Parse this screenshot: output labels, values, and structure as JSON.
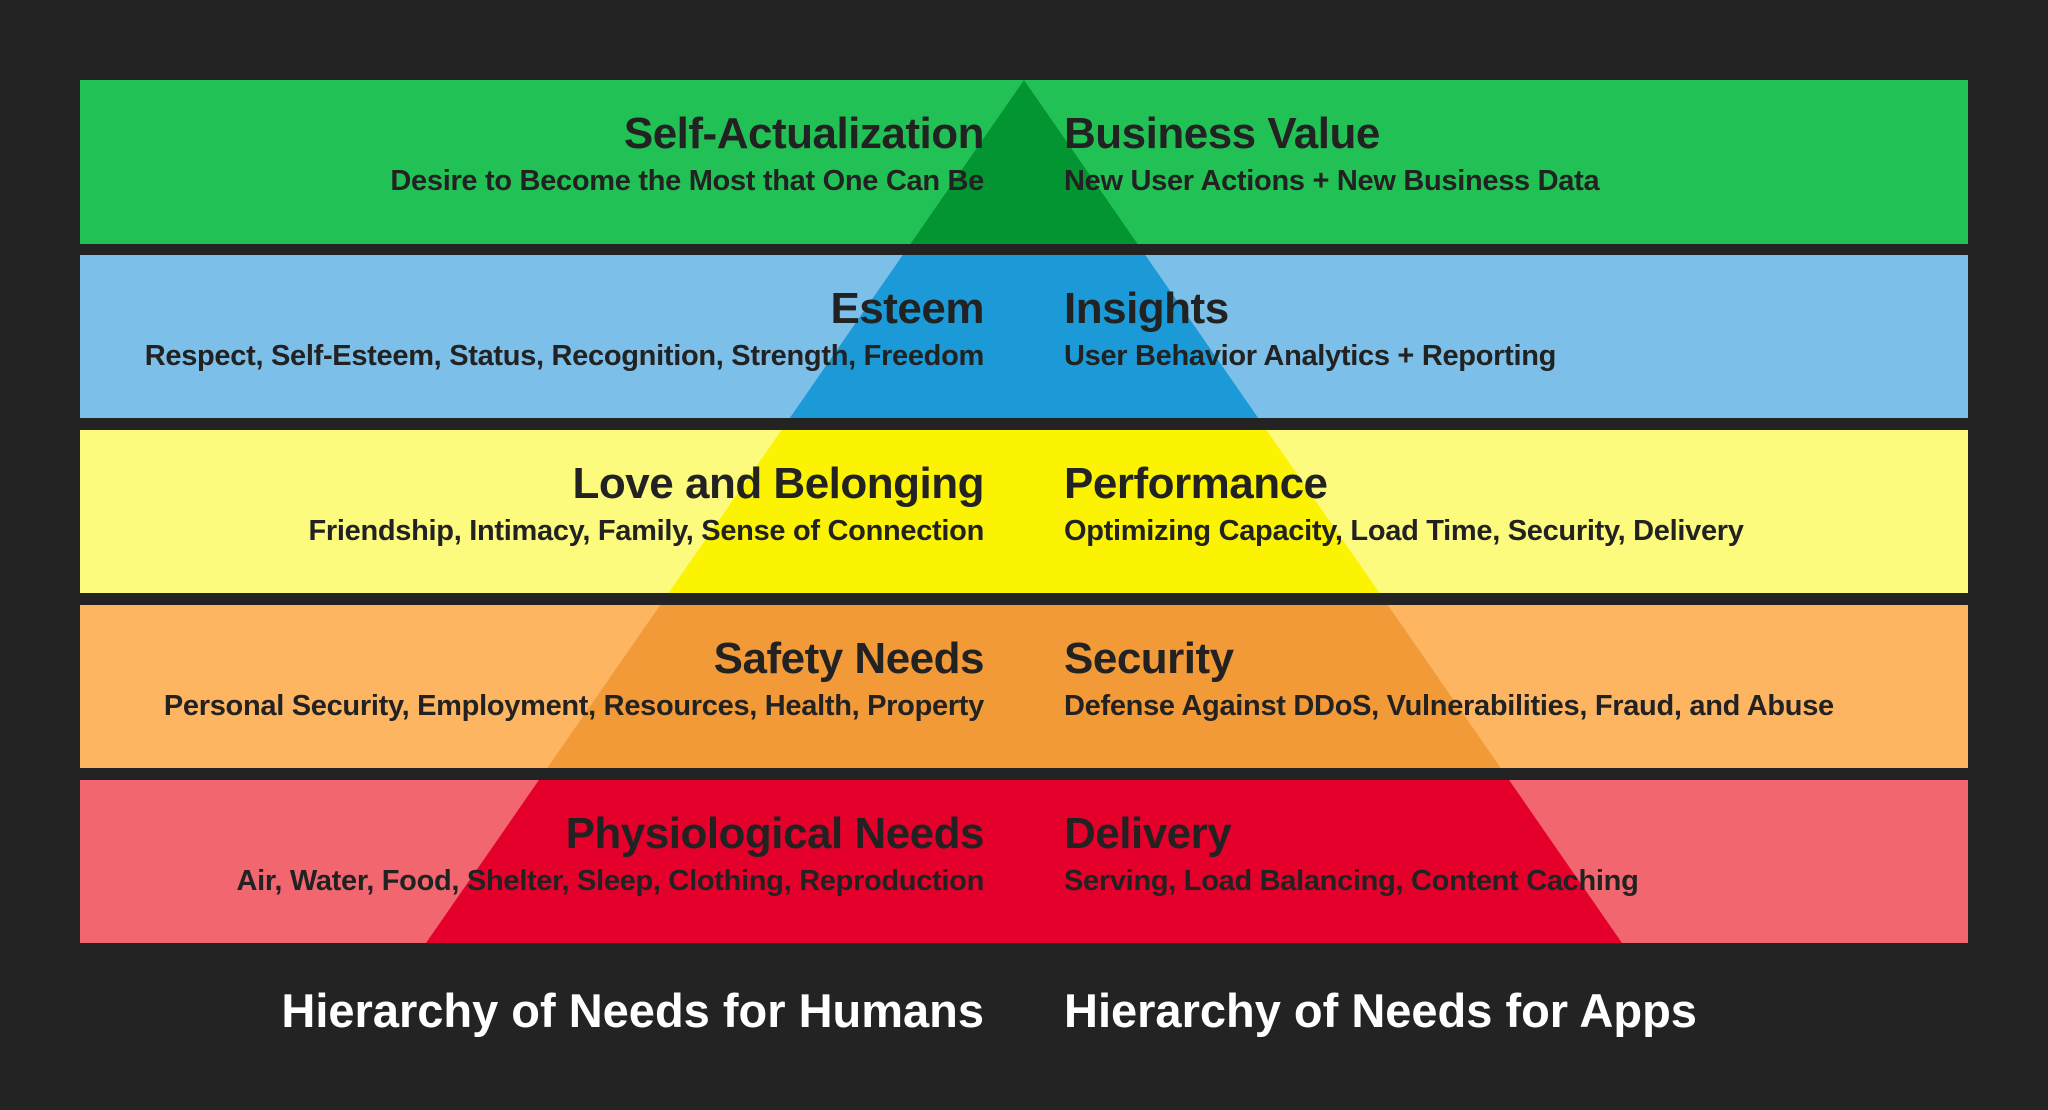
{
  "levels": [
    {
      "human_title": "Self-Actualization",
      "human_desc": "Desire to Become the Most that One Can Be",
      "app_title": "Business Value",
      "app_desc": "New User Actions + New Business Data",
      "band_color": "#22c155",
      "triangle_color": "#039532"
    },
    {
      "human_title": "Esteem",
      "human_desc": "Respect, Self-Esteem, Status, Recognition, Strength, Freedom",
      "app_title": "Insights",
      "app_desc": "User Behavior Analytics + Reporting",
      "band_color": "#7cbfe9",
      "triangle_color": "#1c9ad8"
    },
    {
      "human_title": "Love and Belonging",
      "human_desc": "Friendship, Intimacy, Family, Sense of Connection",
      "app_title": "Performance",
      "app_desc": "Optimizing Capacity, Load Time, Security, Delivery",
      "band_color": "#fdfb7e",
      "triangle_color": "#fbf301"
    },
    {
      "human_title": "Safety Needs",
      "human_desc": "Personal Security, Employment, Resources, Health, Property",
      "app_title": "Security",
      "app_desc": "Defense Against DDoS, Vulnerabilities, Fraud, and Abuse",
      "band_color": "#fdb562",
      "triangle_color": "#f29a38"
    },
    {
      "human_title": "Physiological Needs",
      "human_desc": "Air, Water, Food, Shelter, Sleep, Clothing, Reproduction",
      "app_title": "Delivery",
      "app_desc": "Serving, Load Balancing, Content Caching",
      "band_color": "#f1666f",
      "triangle_color": "#e4002b"
    }
  ],
  "captions": {
    "human": "Hierarchy of Needs for Humans",
    "app": "Hierarchy of Needs for Apps"
  },
  "colors": {
    "background": "#232323",
    "separator": "#ffffff",
    "text": "#222222",
    "caption": "#ffffff"
  }
}
